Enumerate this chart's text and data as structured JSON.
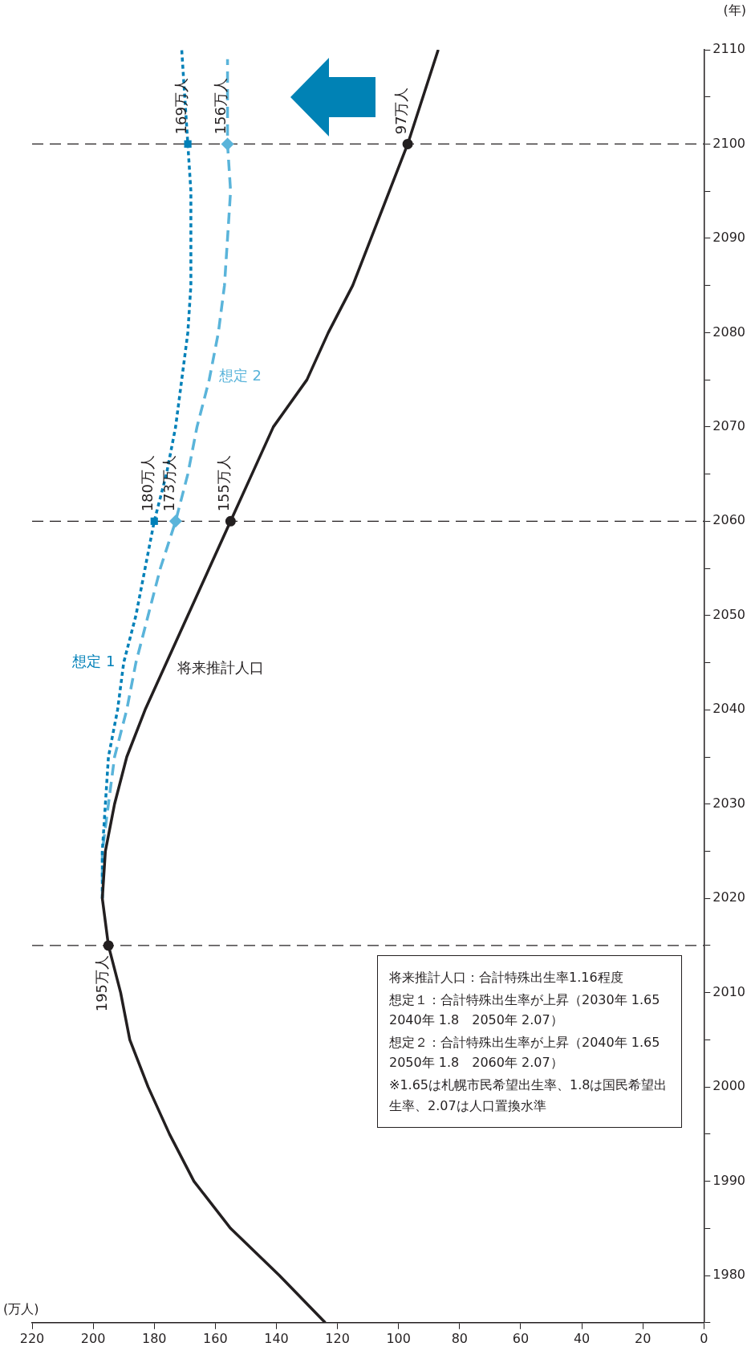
{
  "chart_data": {
    "type": "line",
    "orientation": "horizontal",
    "xlabel": "(万人)",
    "ylabel": "(年)",
    "xlim": [
      220,
      0
    ],
    "xticks": [
      0,
      20,
      40,
      60,
      80,
      100,
      120,
      140,
      160,
      180,
      200,
      220
    ],
    "ylim": [
      1975,
      2110
    ],
    "yticks": [
      {
        "value": 1975,
        "label": null
      },
      1980,
      {
        "value": 1985,
        "label": null
      },
      1990,
      {
        "value": 1995,
        "label": null
      },
      2000,
      {
        "value": 2005,
        "label": null
      },
      2010,
      {
        "value": 2015,
        "label": null
      },
      2020,
      {
        "value": 2025,
        "label": null
      },
      2030,
      {
        "value": 2035,
        "label": null
      },
      2040,
      {
        "value": 2045,
        "label": null
      },
      2050,
      {
        "value": 2055,
        "label": null
      },
      2060,
      {
        "value": 2065,
        "label": null
      },
      2070,
      {
        "value": 2075,
        "label": null
      },
      2080,
      {
        "value": 2085,
        "label": null
      },
      2090,
      {
        "value": 2095,
        "label": null
      },
      2100,
      {
        "value": 2105,
        "label": null
      },
      2110
    ],
    "legend": false,
    "series": [
      {
        "name": "将来推計人口",
        "color": "#231f20",
        "line_style": "solid",
        "x": [
          1975,
          1980,
          1985,
          1990,
          1995,
          2000,
          2005,
          2010,
          2015,
          2020,
          2025,
          2030,
          2035,
          2040,
          2045,
          2050,
          2055,
          2060,
          2065,
          2070,
          2075,
          2080,
          2085,
          2090,
          2095,
          2100,
          2105,
          2110
        ],
        "values": [
          124,
          139,
          155,
          167,
          175,
          182,
          188,
          191,
          195,
          197,
          196,
          193,
          189,
          183,
          176,
          169,
          162,
          155,
          148,
          141,
          130,
          123,
          115,
          109,
          103,
          97,
          92,
          87
        ]
      },
      {
        "name": "想定 1",
        "color": "#0080b8",
        "line_style": "dotted",
        "x": [
          2020,
          2025,
          2030,
          2035,
          2040,
          2045,
          2050,
          2055,
          2060,
          2065,
          2070,
          2075,
          2080,
          2085,
          2090,
          2095,
          2100,
          2105,
          2110
        ],
        "values": [
          197,
          197,
          196,
          195,
          192,
          190,
          186,
          183,
          180,
          176,
          173,
          171,
          169,
          168,
          168,
          168,
          169,
          170,
          171
        ]
      },
      {
        "name": "想定 2",
        "color": "#5ab4da",
        "line_style": "dashed",
        "x": [
          2020,
          2025,
          2030,
          2035,
          2040,
          2045,
          2050,
          2055,
          2060,
          2065,
          2070,
          2075,
          2080,
          2085,
          2090,
          2095,
          2100,
          2105,
          2109
        ],
        "values": [
          197,
          197,
          195,
          193,
          189,
          186,
          182,
          178,
          173,
          169,
          166,
          162,
          159,
          157,
          156,
          155,
          156,
          156,
          156
        ]
      },
      {
        "type": "scatter",
        "color": "#231f20",
        "marker": "circle",
        "x": [
          2015,
          2060,
          2100
        ],
        "values": [
          195,
          155,
          97
        ],
        "value_labels": [
          "195万人",
          "155万人",
          "97万人"
        ]
      },
      {
        "type": "scatter",
        "color": "#0080b8",
        "marker": "square",
        "x": [
          2060,
          2100
        ],
        "values": [
          180,
          169
        ],
        "value_labels": [
          "180万人",
          "169万人"
        ]
      },
      {
        "type": "scatter",
        "color": "#5ab4da",
        "marker": "diamond",
        "x": [
          2060,
          2100
        ],
        "values": [
          173,
          156
        ],
        "value_labels": [
          "173万人",
          "156万人"
        ]
      }
    ],
    "ref_lines": [
      {
        "axis": "y",
        "value": 2015,
        "color": "#231f20",
        "line_style": "dashed"
      },
      {
        "axis": "y",
        "value": 2060,
        "color": "#231f20",
        "line_style": "dashed"
      },
      {
        "axis": "y",
        "value": 2100,
        "color": "#231f20",
        "line_style": "dashed"
      }
    ],
    "annotations": [
      "将来推計人口：合計特殊出生率1.16程度",
      "想定１：合計特殊出生率が上昇（2030年 1.65　2040年 1.8　2050年 2.07）",
      "想定２：合計特殊出生率が上昇（2040年 1.65　2050年 1.8　2060年 2.07）",
      "※1.65は札幌市民希望出生率、1.8は国民希望出生率、2.07は人口置換水準"
    ]
  }
}
